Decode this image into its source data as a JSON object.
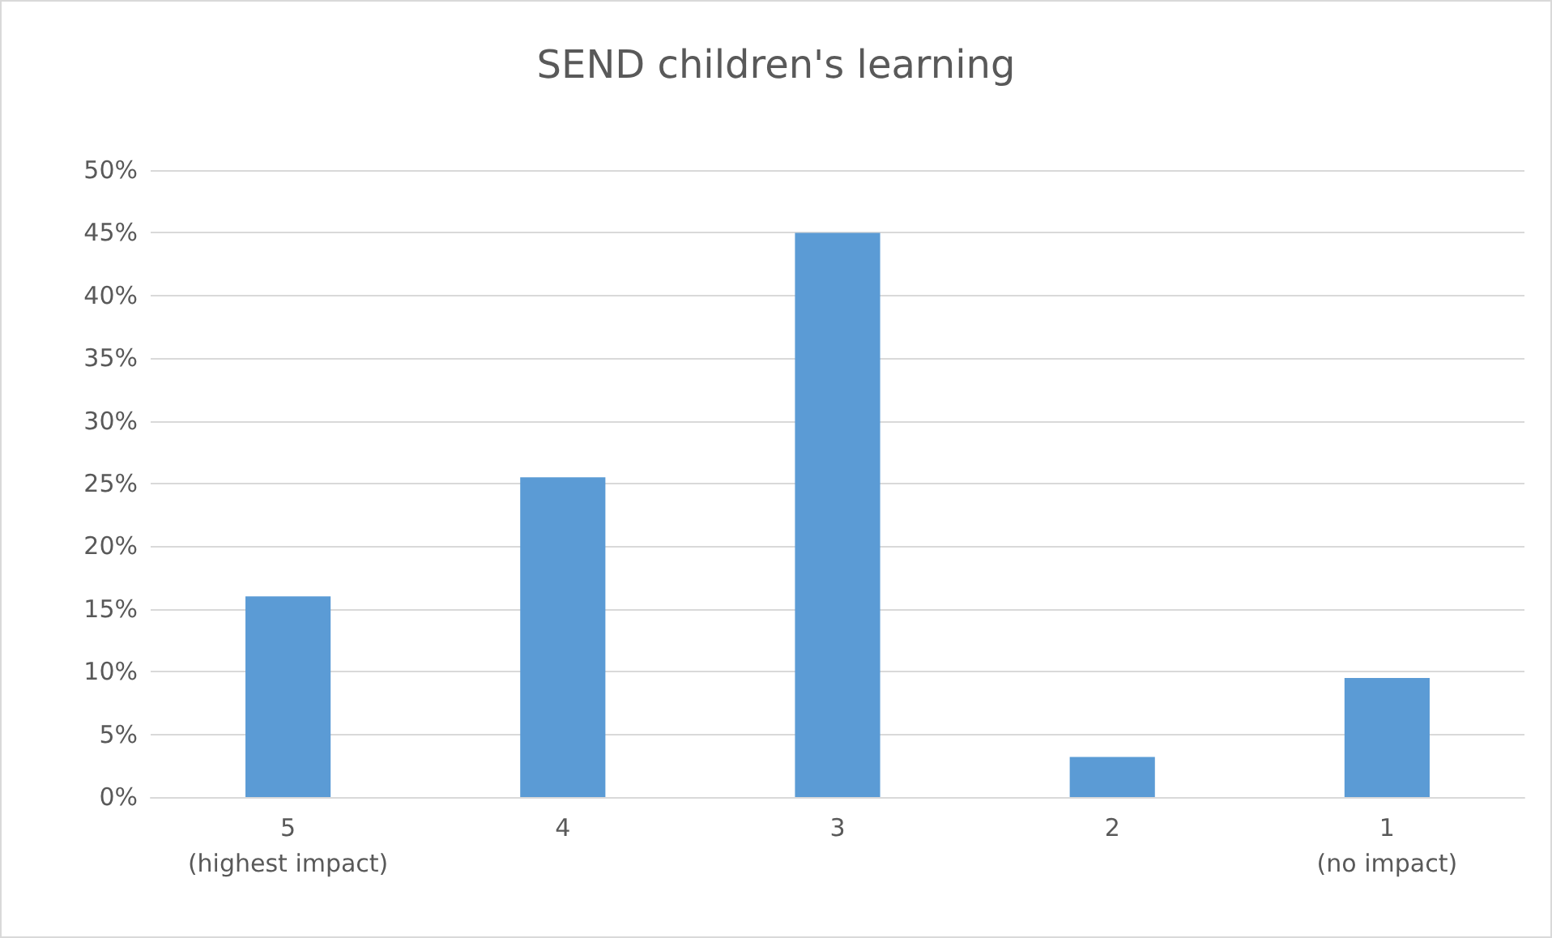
{
  "chart_data": {
    "type": "bar",
    "title": "SEND children's learning",
    "categories": [
      "5\n(highest impact)",
      "4",
      "3",
      "2",
      "1\n(no impact)"
    ],
    "values": [
      16,
      25.5,
      45,
      3.2,
      9.5
    ],
    "color": "#5b9bd5",
    "ylim": [
      0,
      50
    ],
    "yticks": [
      {
        "value": 0,
        "label": "0%"
      },
      {
        "value": 5,
        "label": "5%"
      },
      {
        "value": 10,
        "label": "10%"
      },
      {
        "value": 15,
        "label": "15%"
      },
      {
        "value": 20,
        "label": "20%"
      },
      {
        "value": 25,
        "label": "25%"
      },
      {
        "value": 30,
        "label": "30%"
      },
      {
        "value": 35,
        "label": "35%"
      },
      {
        "value": 40,
        "label": "40%"
      },
      {
        "value": 45,
        "label": "45%"
      },
      {
        "value": 50,
        "label": "50%"
      }
    ],
    "grid": true
  }
}
